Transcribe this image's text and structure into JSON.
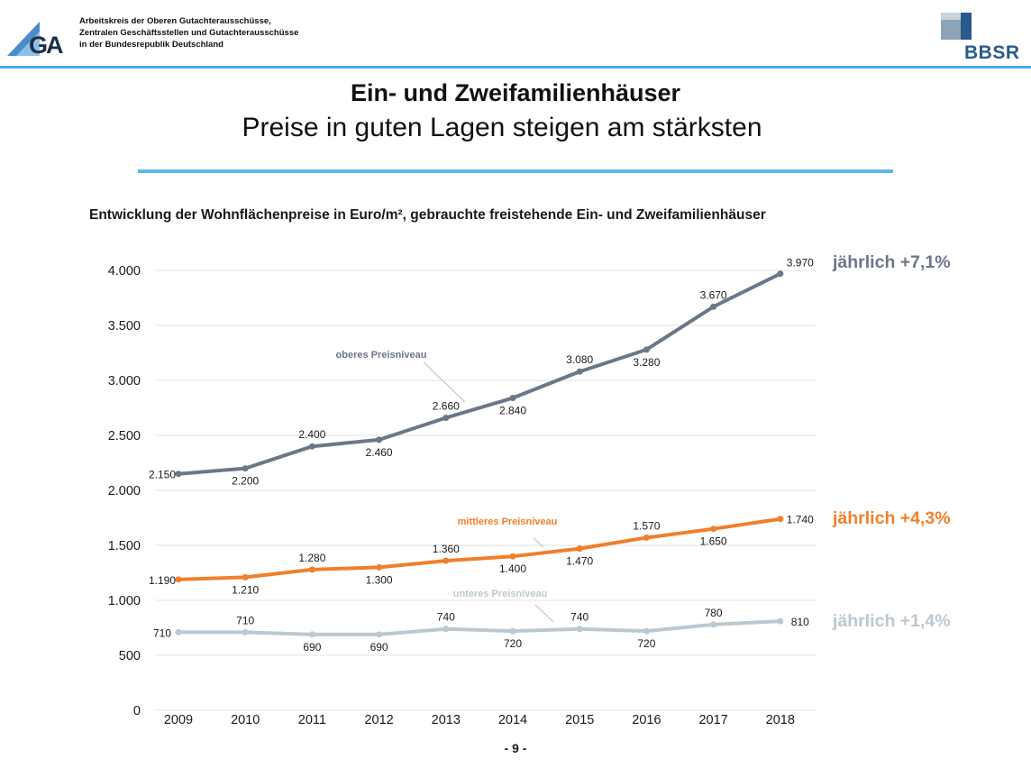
{
  "header": {
    "org_lines": [
      "Arbeitskreis der Oberen Gutachterausschüsse,",
      "Zentralen Geschäftsstellen und Gutachterausschüsse",
      "in der Bundesrepublik Deutschland"
    ],
    "left_logo_text": "GA",
    "right_logo_text": "BBSR"
  },
  "title": "Ein- und Zweifamilienhäuser",
  "subtitle": "Preise in guten Lagen steigen am stärksten",
  "page_number": "- 9 -",
  "rates": {
    "top": "jährlich +7,1%",
    "mid": "jährlich +4,3%",
    "low": "jährlich +1,4%"
  },
  "colors": {
    "accent_blue": "#5cb7ea",
    "top_series": "#6c7689",
    "mid_series": "#f07f2c",
    "low_series": "#bcc8cf"
  },
  "chart_data": {
    "type": "line",
    "title": "Entwicklung der Wohnflächenpreise in Euro/m², gebrauchte freistehende Ein- und Zweifamilienhäuser",
    "xlabel": "",
    "ylabel": "",
    "x": [
      "2009",
      "2010",
      "2011",
      "2012",
      "2013",
      "2014",
      "2015",
      "2016",
      "2017",
      "2018"
    ],
    "ylim": [
      0,
      4000
    ],
    "yticks": [
      0,
      500,
      1000,
      1500,
      2000,
      2500,
      3000,
      3500,
      4000
    ],
    "ytick_labels": [
      "0",
      "500",
      "1.000",
      "1.500",
      "2.000",
      "2.500",
      "3.000",
      "3.500",
      "4.000"
    ],
    "grid": true,
    "series": [
      {
        "name": "oberes Preisniveau",
        "values": [
          2150,
          2200,
          2400,
          2460,
          2660,
          2840,
          3080,
          3280,
          3670,
          3970
        ],
        "labels": [
          "2.150",
          "2.200",
          "2.400",
          "2.460",
          "2.660",
          "2.840",
          "3.080",
          "3.280",
          "3.670",
          "3.970"
        ],
        "color": "#6c7689"
      },
      {
        "name": "mittleres Preisniveau",
        "values": [
          1190,
          1210,
          1280,
          1300,
          1360,
          1400,
          1470,
          1570,
          1650,
          1740
        ],
        "labels": [
          "1.190",
          "1.210",
          "1.280",
          "1.300",
          "1.360",
          "1.400",
          "1.470",
          "1.570",
          "1.650",
          "1.740"
        ],
        "color": "#f07f2c"
      },
      {
        "name": "unteres Preisniveau",
        "values": [
          710,
          710,
          690,
          690,
          740,
          720,
          740,
          720,
          780,
          810
        ],
        "labels": [
          "710",
          "710",
          "690",
          "690",
          "740",
          "720",
          "740",
          "720",
          "780",
          "810"
        ],
        "color": "#bcc8cf"
      }
    ]
  }
}
